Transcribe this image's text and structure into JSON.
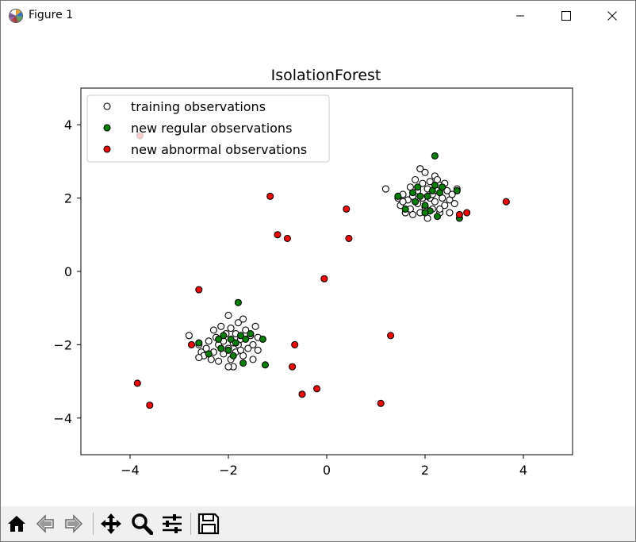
{
  "window": {
    "title": "Figure 1",
    "controls": {
      "minimize": "minimize-icon",
      "maximize": "maximize-icon",
      "close": "close-icon"
    }
  },
  "toolbar": {
    "buttons": [
      "home-icon",
      "back-icon",
      "forward-icon",
      "pan-icon",
      "zoom-icon",
      "configure-subplots-icon",
      "save-icon"
    ]
  },
  "chart_data": {
    "type": "scatter",
    "title": "IsolationForest",
    "xlabel": "",
    "ylabel": "",
    "xlim": [
      -5,
      5
    ],
    "ylim": [
      -5,
      5
    ],
    "xticks": [
      -4,
      -2,
      0,
      2,
      4
    ],
    "yticks": [
      -4,
      -2,
      0,
      2,
      4
    ],
    "xtick_labels": [
      "−4",
      "−2",
      "0",
      "2",
      "4"
    ],
    "ytick_labels": [
      "−4",
      "−2",
      "0",
      "2",
      "4"
    ],
    "grid": false,
    "legend_position": "upper-left",
    "series": [
      {
        "name": "training observations",
        "color": "#ffffff",
        "edgecolor": "#000000",
        "points": [
          [
            -2.8,
            -1.75
          ],
          [
            -2.6,
            -2.0
          ],
          [
            -2.55,
            -2.2
          ],
          [
            -2.5,
            -2.3
          ],
          [
            -2.45,
            -2.1
          ],
          [
            -2.4,
            -1.9
          ],
          [
            -2.35,
            -2.4
          ],
          [
            -2.3,
            -2.2
          ],
          [
            -2.3,
            -1.6
          ],
          [
            -2.25,
            -1.8
          ],
          [
            -2.2,
            -2.0
          ],
          [
            -2.2,
            -2.45
          ],
          [
            -2.15,
            -1.5
          ],
          [
            -2.1,
            -1.9
          ],
          [
            -2.1,
            -2.25
          ],
          [
            -2.05,
            -1.7
          ],
          [
            -2.0,
            -2.1
          ],
          [
            -2.0,
            -1.2
          ],
          [
            -1.95,
            -1.55
          ],
          [
            -1.95,
            -2.4
          ],
          [
            -1.9,
            -1.95
          ],
          [
            -1.9,
            -2.6
          ],
          [
            -1.85,
            -1.7
          ],
          [
            -1.85,
            -2.2
          ],
          [
            -1.8,
            -1.4
          ],
          [
            -1.8,
            -2.0
          ],
          [
            -1.75,
            -1.85
          ],
          [
            -1.7,
            -1.3
          ],
          [
            -1.7,
            -2.3
          ],
          [
            -1.65,
            -1.6
          ],
          [
            -1.6,
            -2.1
          ],
          [
            -1.55,
            -1.75
          ],
          [
            -1.5,
            -2.0
          ],
          [
            -1.5,
            -2.4
          ],
          [
            -1.45,
            -1.5
          ],
          [
            -1.4,
            -1.8
          ],
          [
            -1.4,
            -2.15
          ],
          [
            -2.6,
            -2.35
          ],
          [
            -2.0,
            -2.6
          ],
          [
            -1.75,
            -2.15
          ],
          [
            1.2,
            2.25
          ],
          [
            1.45,
            2.0
          ],
          [
            1.5,
            1.8
          ],
          [
            1.55,
            2.1
          ],
          [
            1.6,
            1.6
          ],
          [
            1.65,
            1.95
          ],
          [
            1.7,
            2.3
          ],
          [
            1.7,
            1.7
          ],
          [
            1.75,
            2.05
          ],
          [
            1.75,
            1.55
          ],
          [
            1.8,
            2.5
          ],
          [
            1.85,
            1.85
          ],
          [
            1.85,
            2.2
          ],
          [
            1.9,
            2.8
          ],
          [
            1.9,
            1.6
          ],
          [
            1.95,
            2.4
          ],
          [
            1.95,
            2.0
          ],
          [
            2.0,
            2.7
          ],
          [
            2.0,
            1.75
          ],
          [
            2.05,
            2.25
          ],
          [
            2.05,
            1.45
          ],
          [
            2.1,
            2.0
          ],
          [
            2.1,
            2.45
          ],
          [
            2.15,
            1.7
          ],
          [
            2.15,
            2.1
          ],
          [
            2.2,
            2.6
          ],
          [
            2.2,
            1.9
          ],
          [
            2.25,
            2.5
          ],
          [
            2.25,
            2.2
          ],
          [
            2.3,
            1.6
          ],
          [
            2.3,
            2.35
          ],
          [
            2.35,
            2.0
          ],
          [
            2.4,
            1.8
          ],
          [
            2.45,
            2.2
          ],
          [
            2.5,
            1.95
          ],
          [
            2.5,
            1.6
          ],
          [
            2.55,
            2.1
          ],
          [
            2.6,
            1.85
          ],
          [
            2.65,
            2.25
          ],
          [
            1.55,
            1.9
          ],
          [
            2.4,
            2.4
          ],
          [
            2.3,
            1.7
          ]
        ]
      },
      {
        "name": "new regular observations",
        "color": "#008000",
        "edgecolor": "#000000",
        "points": [
          [
            -2.6,
            -1.95
          ],
          [
            -2.4,
            -2.25
          ],
          [
            -2.2,
            -1.85
          ],
          [
            -2.15,
            -2.1
          ],
          [
            -2.1,
            -1.75
          ],
          [
            -2.0,
            -2.15
          ],
          [
            -1.95,
            -1.85
          ],
          [
            -1.9,
            -2.3
          ],
          [
            -1.85,
            -1.95
          ],
          [
            -1.8,
            -0.85
          ],
          [
            -1.75,
            -1.75
          ],
          [
            -1.7,
            -2.5
          ],
          [
            -1.65,
            -1.85
          ],
          [
            -1.55,
            -1.7
          ],
          [
            -1.3,
            -1.85
          ],
          [
            -1.25,
            -2.55
          ],
          [
            1.45,
            2.05
          ],
          [
            1.6,
            1.7
          ],
          [
            1.75,
            2.15
          ],
          [
            1.8,
            1.9
          ],
          [
            1.85,
            2.3
          ],
          [
            1.9,
            2.05
          ],
          [
            2.0,
            1.8
          ],
          [
            2.05,
            2.05
          ],
          [
            2.1,
            1.65
          ],
          [
            2.15,
            2.2
          ],
          [
            2.2,
            3.15
          ],
          [
            2.2,
            2.35
          ],
          [
            2.25,
            1.5
          ],
          [
            2.3,
            2.15
          ],
          [
            2.35,
            2.3
          ],
          [
            2.65,
            2.2
          ],
          [
            2.7,
            1.45
          ],
          [
            2.0,
            1.6
          ]
        ]
      },
      {
        "name": "new abnormal observations",
        "color": "#ff0000",
        "edgecolor": "#000000",
        "points": [
          [
            -3.85,
            -3.05
          ],
          [
            -3.8,
            3.7
          ],
          [
            -3.6,
            -3.65
          ],
          [
            -2.75,
            -2.0
          ],
          [
            -2.6,
            -0.5
          ],
          [
            -1.15,
            2.05
          ],
          [
            -1.0,
            1.0
          ],
          [
            -0.8,
            0.9
          ],
          [
            -0.7,
            -2.6
          ],
          [
            -0.65,
            -2.0
          ],
          [
            -0.5,
            -3.35
          ],
          [
            -0.2,
            -3.2
          ],
          [
            -0.05,
            -0.2
          ],
          [
            0.4,
            1.7
          ],
          [
            0.45,
            0.9
          ],
          [
            1.1,
            -3.6
          ],
          [
            1.3,
            -1.75
          ],
          [
            2.7,
            1.55
          ],
          [
            2.85,
            1.6
          ],
          [
            3.65,
            1.9
          ]
        ]
      }
    ]
  }
}
